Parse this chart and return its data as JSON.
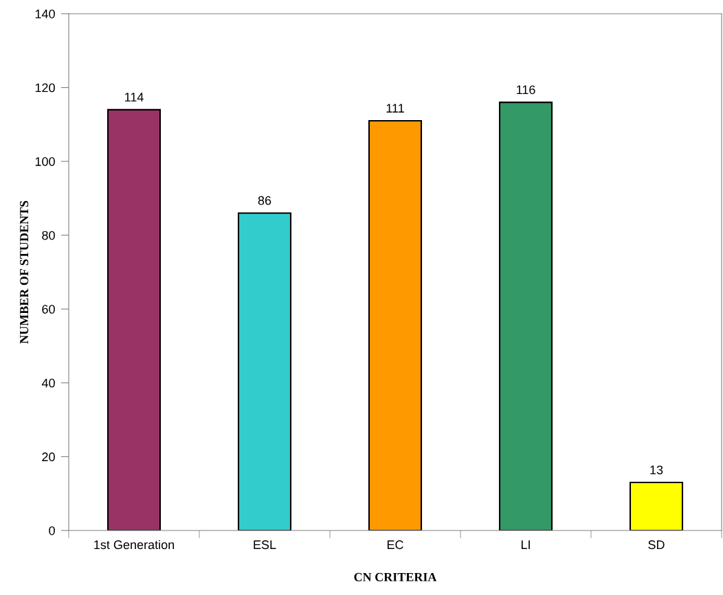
{
  "chart_data": {
    "type": "bar",
    "xlabel": "CN CRITERIA",
    "ylabel": "NUMBER OF STUDENTS",
    "categories": [
      "1st Generation",
      "ESL",
      "EC",
      "LI",
      "SD"
    ],
    "values": [
      114,
      86,
      111,
      116,
      13
    ],
    "colors": [
      "#993366",
      "#33cccc",
      "#ff9900",
      "#339966",
      "#ffff00"
    ],
    "ylim": [
      0,
      140
    ],
    "yticks": [
      0,
      20,
      40,
      60,
      80,
      100,
      120,
      140
    ],
    "data_labels": true,
    "grid": false,
    "legend": false
  }
}
